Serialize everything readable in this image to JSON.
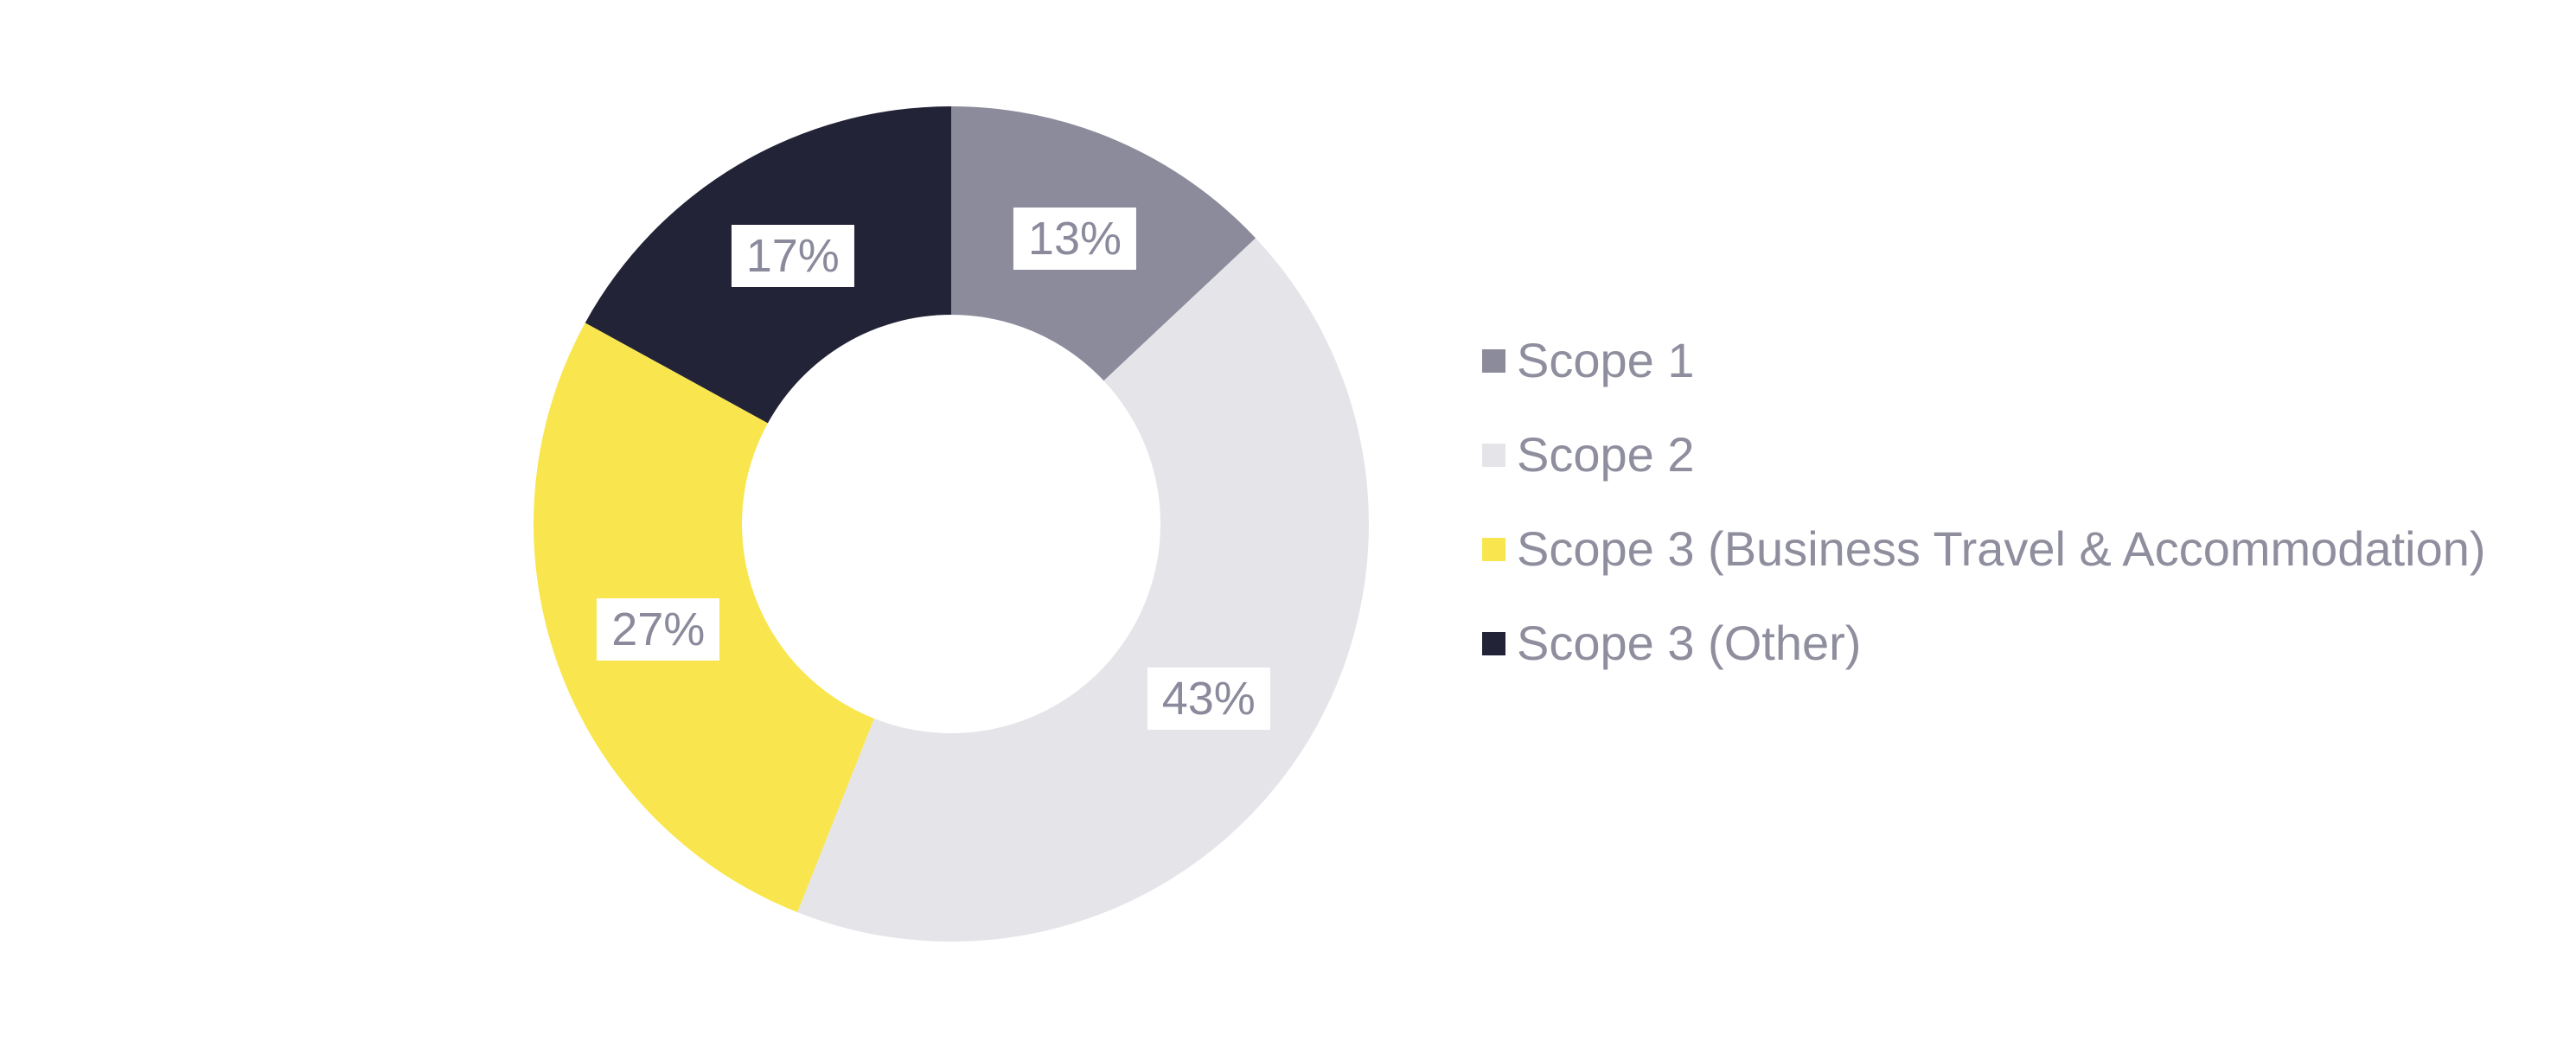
{
  "page": {
    "background": "#FFFFFF"
  },
  "chart_data": {
    "type": "pie",
    "subtype": "donut",
    "title": "",
    "direction": "clockwise",
    "start_angle_deg": 0,
    "donut_hole_ratio": 0.5,
    "legend_position": "right",
    "data_labels_format": "percent",
    "label_text_color": "#8A8A9C",
    "label_box_background": "#FFFFFF",
    "legend_text_color": "#8E8E9E",
    "slices": [
      {
        "label": "Scope 1",
        "value": 13,
        "display": "13%",
        "color": "#8B8B9C"
      },
      {
        "label": "Scope 2",
        "value": 43,
        "display": "43%",
        "color": "#E5E4E9"
      },
      {
        "label": "Scope 3 (Business Travel & Accommodation)",
        "value": 27,
        "display": "27%",
        "color": "#F9E64E"
      },
      {
        "label": "Scope 3 (Other)",
        "value": 17,
        "display": "17%",
        "color": "#232338"
      }
    ]
  }
}
